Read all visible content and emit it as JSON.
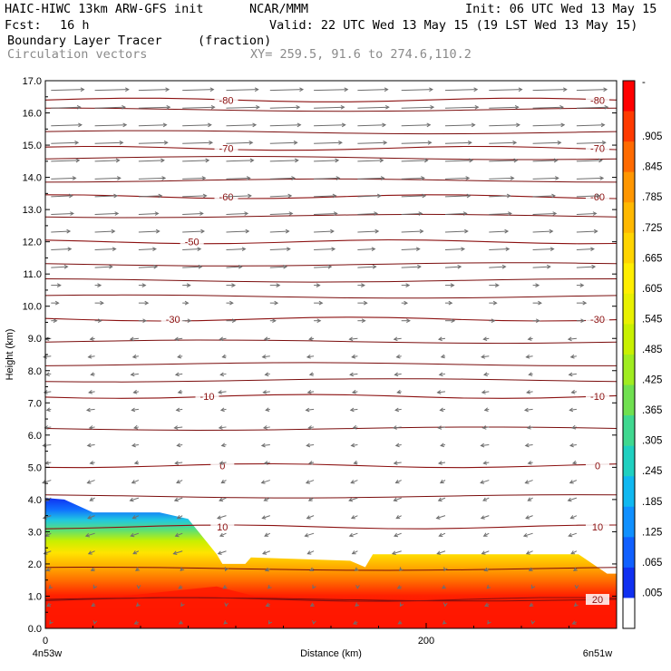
{
  "header": {
    "model": "HAIC-HIWC 13km ARW-GFS init",
    "org": "NCAR/MMM",
    "init": "Init: 06 UTC Wed 13 May 15",
    "fcst_label": "Fcst:",
    "fcst_value": "16 h",
    "valid": "Valid: 22 UTC Wed 13 May 15 (19 LST Wed 13 May 15)",
    "field1_name": "Boundary Layer Tracer",
    "field1_units": "(fraction)",
    "field2_name": "Circulation vectors",
    "xsection": "XY= 259.5, 91.6 to 274.6,110.2"
  },
  "chart_data": {
    "type": "heatmap",
    "ylabel": "Height (km)",
    "xlabel": "Distance (km)",
    "xlim": [
      0,
      300
    ],
    "ylim": [
      0,
      17
    ],
    "y_ticks": [
      0,
      1,
      2,
      3,
      4,
      5,
      6,
      7,
      8,
      9,
      10,
      11,
      12,
      13,
      14,
      15,
      16,
      17
    ],
    "y_tick_labels": [
      "0.0",
      "1.0",
      "2.0",
      "3.0",
      "4.0",
      "5.0",
      "6.0",
      "7.0",
      "8.0",
      "9.0",
      "10.0",
      "11.0",
      "12.0",
      "13.0",
      "14.0",
      "15.0",
      "16.0",
      "17.0"
    ],
    "x_ticks": [
      0,
      200
    ],
    "x_tick_labels": [
      "0",
      "200"
    ],
    "x_start_label": "4n53w",
    "x_end_label": "6n51w",
    "colorbar_labels": [
      "-",
      ".905",
      ".845",
      ".785",
      ".725",
      ".665",
      ".605",
      ".545",
      ".485",
      ".425",
      ".365",
      ".305",
      ".245",
      ".185",
      ".125",
      ".065",
      ".005"
    ],
    "colorbar_colors": [
      "#ff0000",
      "#ff3a00",
      "#ff6a00",
      "#ff9600",
      "#ffb800",
      "#ffd400",
      "#ffee00",
      "#e8f000",
      "#c8f000",
      "#a0ec20",
      "#70e050",
      "#40d890",
      "#20d0c0",
      "#10b8f0",
      "#1090ff",
      "#1060ff",
      "#1030f0",
      "#ffffff"
    ],
    "tracer_top_km": [
      [
        0,
        4.05
      ],
      [
        10,
        4.0
      ],
      [
        25,
        3.6
      ],
      [
        60,
        3.6
      ],
      [
        75,
        3.4
      ],
      [
        90,
        2.3
      ],
      [
        93,
        2.0
      ],
      [
        105,
        2.0
      ],
      [
        108,
        2.2
      ],
      [
        160,
        2.1
      ],
      [
        168,
        1.9
      ],
      [
        172,
        2.3
      ],
      [
        280,
        2.3
      ],
      [
        295,
        1.7
      ],
      [
        300,
        1.7
      ]
    ],
    "temperature_contours_c": [
      {
        "label": "-80",
        "y_km": 16.4,
        "label_x_km": [
          95,
          290
        ]
      },
      {
        "label": "-70",
        "y_km": 14.9,
        "label_x_km": [
          95,
          290
        ]
      },
      {
        "label": "-60",
        "y_km": 13.4,
        "label_x_km": [
          95,
          290
        ]
      },
      {
        "label": "-50",
        "y_km": 12.0,
        "label_x_km": [
          77
        ]
      },
      {
        "label": "-30",
        "y_km": 9.6,
        "label_x_km": [
          67,
          290
        ]
      },
      {
        "label": "-10",
        "y_km": 7.2,
        "label_x_km": [
          85,
          290
        ]
      },
      {
        "label": "0",
        "y_km": 5.05,
        "label_x_km": [
          93,
          290
        ]
      },
      {
        "label": "10",
        "y_km": 3.15,
        "label_x_km": [
          93,
          290
        ]
      },
      {
        "label": "20",
        "y_km": 0.9,
        "label_x_km": [
          290
        ]
      }
    ],
    "potential_temperature_km": [
      0.9,
      1.85,
      4.1,
      6.2,
      7.7,
      8.2,
      8.9,
      10.3,
      10.8,
      11.3,
      12.8,
      13.9,
      14.6,
      15.4,
      16.1
    ]
  }
}
